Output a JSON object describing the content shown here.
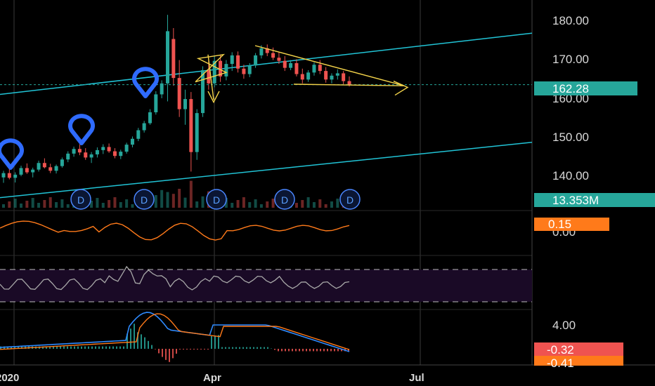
{
  "colors": {
    "background": "#000000",
    "grid": "#3a3a3a",
    "up": "#26a69a",
    "down": "#ef5350",
    "channel": "#21c4d6",
    "drawing": "#f3d34a",
    "marker": "#2f6bff",
    "macd": "#2f8bff",
    "signal": "#ff7a1a",
    "oscillator": "#ff7a1a",
    "rsi": "#a8a8a8",
    "rsi_band": "#1a0a26"
  },
  "chart_data": [
    {
      "type": "candlestick",
      "pane": "price",
      "y_ticks": [
        "180.00",
        "170.00",
        "160.00",
        "150.00",
        "140.00"
      ],
      "ylim": [
        130,
        184
      ],
      "x_ticks": [
        "2020",
        "Apr",
        "Jul"
      ],
      "x_tick_positions": [
        0.01,
        0.39,
        0.8
      ],
      "last_price": "162.28",
      "candles": [
        {
          "o": 138.5,
          "h": 140.2,
          "l": 137.1,
          "c": 139.6
        },
        {
          "o": 139.6,
          "h": 141.0,
          "l": 138.0,
          "c": 138.4
        },
        {
          "o": 138.4,
          "h": 139.8,
          "l": 137.2,
          "c": 139.2
        },
        {
          "o": 139.2,
          "h": 141.5,
          "l": 138.8,
          "c": 140.9
        },
        {
          "o": 140.9,
          "h": 142.1,
          "l": 139.4,
          "c": 139.8
        },
        {
          "o": 139.8,
          "h": 141.0,
          "l": 138.5,
          "c": 140.5
        },
        {
          "o": 140.5,
          "h": 142.8,
          "l": 140.0,
          "c": 142.2
        },
        {
          "o": 142.2,
          "h": 143.4,
          "l": 140.8,
          "c": 141.1
        },
        {
          "o": 141.1,
          "h": 142.0,
          "l": 139.6,
          "c": 140.2
        },
        {
          "o": 140.2,
          "h": 141.8,
          "l": 139.5,
          "c": 141.4
        },
        {
          "o": 141.4,
          "h": 143.6,
          "l": 141.0,
          "c": 143.1
        },
        {
          "o": 143.1,
          "h": 145.2,
          "l": 142.4,
          "c": 144.6
        },
        {
          "o": 144.6,
          "h": 146.4,
          "l": 143.8,
          "c": 145.8
        },
        {
          "o": 145.8,
          "h": 147.0,
          "l": 144.2,
          "c": 144.9
        },
        {
          "o": 144.9,
          "h": 146.0,
          "l": 143.0,
          "c": 143.6
        },
        {
          "o": 143.6,
          "h": 145.0,
          "l": 142.2,
          "c": 144.4
        },
        {
          "o": 144.4,
          "h": 146.2,
          "l": 143.6,
          "c": 145.5
        },
        {
          "o": 145.5,
          "h": 147.0,
          "l": 144.5,
          "c": 146.3
        },
        {
          "o": 146.3,
          "h": 147.2,
          "l": 144.8,
          "c": 145.2
        },
        {
          "o": 145.2,
          "h": 146.0,
          "l": 143.4,
          "c": 144.0
        },
        {
          "o": 144.0,
          "h": 145.6,
          "l": 143.2,
          "c": 145.1
        },
        {
          "o": 145.1,
          "h": 147.4,
          "l": 144.6,
          "c": 146.9
        },
        {
          "o": 146.9,
          "h": 149.0,
          "l": 146.2,
          "c": 148.4
        },
        {
          "o": 148.4,
          "h": 151.2,
          "l": 147.8,
          "c": 150.6
        },
        {
          "o": 150.6,
          "h": 153.0,
          "l": 150.0,
          "c": 152.4
        },
        {
          "o": 152.4,
          "h": 156.0,
          "l": 152.0,
          "c": 155.2
        },
        {
          "o": 155.2,
          "h": 160.6,
          "l": 154.6,
          "c": 159.8
        },
        {
          "o": 159.8,
          "h": 163.4,
          "l": 158.8,
          "c": 162.6
        },
        {
          "o": 162.6,
          "h": 180.2,
          "l": 158.0,
          "c": 176.0
        },
        {
          "o": 174.0,
          "h": 176.8,
          "l": 162.0,
          "c": 164.0
        },
        {
          "o": 164.0,
          "h": 168.6,
          "l": 154.0,
          "c": 156.0
        },
        {
          "o": 156.0,
          "h": 161.0,
          "l": 152.0,
          "c": 158.6
        },
        {
          "o": 158.6,
          "h": 160.4,
          "l": 140.0,
          "c": 145.0
        },
        {
          "o": 145.0,
          "h": 156.0,
          "l": 143.0,
          "c": 155.0
        },
        {
          "o": 155.0,
          "h": 167.0,
          "l": 154.0,
          "c": 166.0
        },
        {
          "o": 166.0,
          "h": 169.2,
          "l": 161.0,
          "c": 162.6
        },
        {
          "o": 162.6,
          "h": 169.6,
          "l": 161.6,
          "c": 168.4
        },
        {
          "o": 168.4,
          "h": 170.0,
          "l": 163.0,
          "c": 164.4
        },
        {
          "o": 164.4,
          "h": 168.6,
          "l": 163.4,
          "c": 167.6
        },
        {
          "o": 167.6,
          "h": 170.6,
          "l": 165.8,
          "c": 169.8
        },
        {
          "o": 169.8,
          "h": 170.8,
          "l": 165.4,
          "c": 166.4
        },
        {
          "o": 166.4,
          "h": 167.4,
          "l": 163.8,
          "c": 165.0
        },
        {
          "o": 165.0,
          "h": 167.8,
          "l": 164.2,
          "c": 167.2
        },
        {
          "o": 167.2,
          "h": 170.4,
          "l": 166.6,
          "c": 169.8
        },
        {
          "o": 169.8,
          "h": 172.4,
          "l": 169.0,
          "c": 171.6
        },
        {
          "o": 171.6,
          "h": 172.6,
          "l": 169.6,
          "c": 170.4
        },
        {
          "o": 170.4,
          "h": 171.8,
          "l": 168.6,
          "c": 169.2
        },
        {
          "o": 169.2,
          "h": 170.6,
          "l": 167.6,
          "c": 168.4
        },
        {
          "o": 168.4,
          "h": 169.6,
          "l": 165.8,
          "c": 166.6
        },
        {
          "o": 166.6,
          "h": 168.6,
          "l": 166.0,
          "c": 167.8
        },
        {
          "o": 167.8,
          "h": 168.8,
          "l": 164.4,
          "c": 165.0
        },
        {
          "o": 165.0,
          "h": 166.4,
          "l": 162.6,
          "c": 163.6
        },
        {
          "o": 163.6,
          "h": 166.0,
          "l": 163.0,
          "c": 165.4
        },
        {
          "o": 165.4,
          "h": 168.0,
          "l": 164.6,
          "c": 167.4
        },
        {
          "o": 167.4,
          "h": 168.6,
          "l": 165.0,
          "c": 165.8
        },
        {
          "o": 165.8,
          "h": 166.8,
          "l": 162.8,
          "c": 163.6
        },
        {
          "o": 163.6,
          "h": 165.2,
          "l": 162.6,
          "c": 164.6
        },
        {
          "o": 164.6,
          "h": 166.2,
          "l": 163.6,
          "c": 165.2
        },
        {
          "o": 165.2,
          "h": 165.8,
          "l": 162.4,
          "c": 163.2
        },
        {
          "o": 163.2,
          "h": 164.4,
          "l": 161.8,
          "c": 162.28
        }
      ],
      "channel_upper": [
        [
          0.0,
          159.8
        ],
        [
          1.0,
          175.5
        ]
      ],
      "channel_lower": [
        [
          0.0,
          133.3
        ],
        [
          1.0,
          147.5
        ]
      ],
      "dividend_label": "D"
    },
    {
      "type": "bar",
      "pane": "volume",
      "last_value": "13.353M"
    },
    {
      "type": "line",
      "pane": "oscillator",
      "y_ticks": [
        "0.00"
      ],
      "last_value": "0.15"
    },
    {
      "type": "line",
      "pane": "rsi",
      "band": [
        30,
        70
      ]
    },
    {
      "type": "line",
      "pane": "macd",
      "y_ticks": [
        "4.00"
      ],
      "macd_last": "-0.32",
      "signal_last": "-0.41"
    }
  ]
}
